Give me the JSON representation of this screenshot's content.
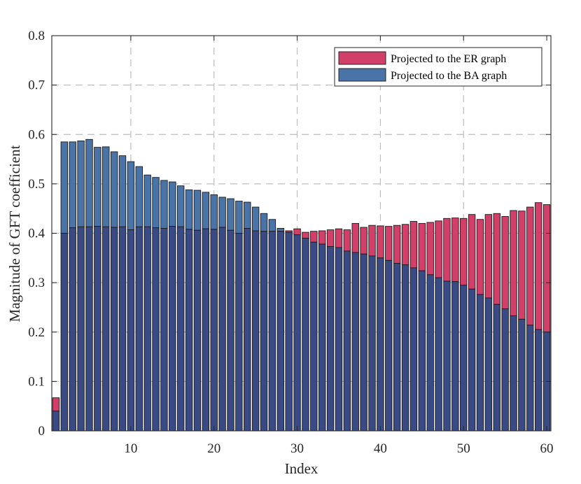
{
  "chart_data": {
    "type": "bar",
    "title": "",
    "xlabel": "Index",
    "ylabel": "Magnitude of GFT coefficient",
    "xlim": [
      0.5,
      60.5
    ],
    "ylim": [
      0,
      0.8
    ],
    "xticks": [
      10,
      20,
      30,
      40,
      50,
      60
    ],
    "yticks": [
      0,
      0.1,
      0.2,
      0.3,
      0.4,
      0.5,
      0.6,
      0.7,
      0.8
    ],
    "xtick_labels": [
      "10",
      "20",
      "30",
      "40",
      "50",
      "60"
    ],
    "ytick_labels": [
      "0",
      "0.1",
      "0.2",
      "0.3",
      "0.4",
      "0.5",
      "0.6",
      "0.7",
      "0.8"
    ],
    "grid": true,
    "legend_position": "top-right",
    "x": [
      1,
      2,
      3,
      4,
      5,
      6,
      7,
      8,
      9,
      10,
      11,
      12,
      13,
      14,
      15,
      16,
      17,
      18,
      19,
      20,
      21,
      22,
      23,
      24,
      25,
      26,
      27,
      28,
      29,
      30,
      31,
      32,
      33,
      34,
      35,
      36,
      37,
      38,
      39,
      40,
      41,
      42,
      43,
      44,
      45,
      46,
      47,
      48,
      49,
      50,
      51,
      52,
      53,
      54,
      55,
      56,
      57,
      58,
      59,
      60
    ],
    "series": [
      {
        "name": "Projected to the ER graph",
        "color": "#D23F69",
        "values": [
          0.067,
          0.4,
          0.411,
          0.413,
          0.413,
          0.414,
          0.413,
          0.412,
          0.413,
          0.407,
          0.413,
          0.413,
          0.411,
          0.41,
          0.414,
          0.413,
          0.408,
          0.406,
          0.409,
          0.408,
          0.412,
          0.406,
          0.4,
          0.41,
          0.405,
          0.404,
          0.404,
          0.404,
          0.405,
          0.409,
          0.402,
          0.404,
          0.405,
          0.407,
          0.409,
          0.407,
          0.42,
          0.412,
          0.416,
          0.415,
          0.414,
          0.416,
          0.418,
          0.424,
          0.42,
          0.422,
          0.425,
          0.43,
          0.431,
          0.43,
          0.438,
          0.428,
          0.438,
          0.44,
          0.434,
          0.446,
          0.445,
          0.453,
          0.462,
          0.458
        ]
      },
      {
        "name": "Projected to the BA graph",
        "color": "#4A74A8",
        "values": [
          0.04,
          0.585,
          0.585,
          0.587,
          0.59,
          0.574,
          0.575,
          0.565,
          0.557,
          0.545,
          0.535,
          0.518,
          0.513,
          0.507,
          0.504,
          0.496,
          0.488,
          0.487,
          0.483,
          0.478,
          0.473,
          0.47,
          0.465,
          0.463,
          0.453,
          0.44,
          0.428,
          0.41,
          0.402,
          0.397,
          0.39,
          0.382,
          0.378,
          0.373,
          0.371,
          0.364,
          0.361,
          0.358,
          0.354,
          0.35,
          0.345,
          0.339,
          0.336,
          0.33,
          0.324,
          0.316,
          0.31,
          0.303,
          0.302,
          0.295,
          0.287,
          0.276,
          0.269,
          0.256,
          0.247,
          0.233,
          0.226,
          0.214,
          0.205,
          0.2
        ]
      }
    ],
    "overlap_color": "#3A4A85"
  }
}
